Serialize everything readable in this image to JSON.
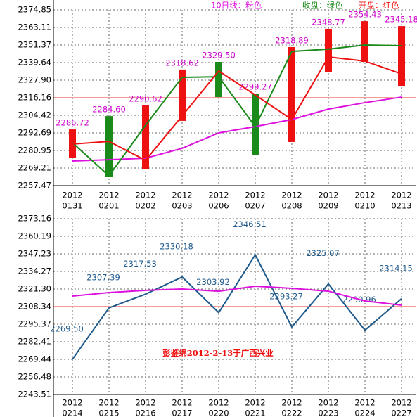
{
  "chart_data": [
    {
      "type": "candlestick",
      "legend": true,
      "categories": [
        {
          "year": "2012",
          "date": "0131"
        },
        {
          "year": "2012",
          "date": "0201"
        },
        {
          "year": "2012",
          "date": "0202"
        },
        {
          "year": "2012",
          "date": "0203"
        },
        {
          "year": "2012",
          "date": "0206"
        },
        {
          "year": "2012",
          "date": "0207"
        },
        {
          "year": "2012",
          "date": "0208"
        },
        {
          "year": "2012",
          "date": "0209"
        },
        {
          "year": "2012",
          "date": "0210"
        },
        {
          "year": "2012",
          "date": "0213"
        }
      ],
      "bars": {
        "low": [
          2276.2,
          2263.1,
          2268.3,
          2300.7,
          2316.6,
          2278.1,
          2286.6,
          2333.5,
          2340.1,
          2324.1
        ],
        "high": [
          2295.0,
          2303.9,
          2311.0,
          2335.0,
          2340.1,
          2319.0,
          2350.0,
          2362.2,
          2367.3,
          2364.0
        ],
        "colors": [
          "#ee1111",
          "#1a8a1a",
          "#ee1111",
          "#ee1111",
          "#1a8a1a",
          "#1a8a1a",
          "#ee1111",
          "#ee1111",
          "#ee1111",
          "#ee1111"
        ]
      },
      "series": [
        {
          "name": "10日线：粉色",
          "color": "#dd11dd",
          "values": [
            2273.9,
            2274.8,
            2275.8,
            2282.4,
            2292.7,
            2296.9,
            2301.6,
            2308.6,
            2312.9,
            2316.6
          ]
        },
        {
          "name": "收盘：绿色",
          "color": "#1a8a1a",
          "values": [
            2286.1,
            2264.0,
            2297.8,
            2329.8,
            2330.2,
            2296.9,
            2347.1,
            2348.6,
            2351.4,
            2350.9
          ]
        },
        {
          "name": "开盘：红色",
          "color": "#ee1111",
          "values": [
            2285.2,
            2287.0,
            2274.4,
            2304.0,
            2334.0,
            2318.0,
            2301.6,
            2343.4,
            2340.6,
            2332.1
          ]
        }
      ],
      "point_labels": [
        "2286.72",
        "2284.60",
        "2290.62",
        "2318.62",
        "2329.50",
        "2299.27",
        "2318.89",
        "2348.77",
        "2354.43",
        "2345.18"
      ],
      "point_label_color": "#cc00cc",
      "reference_line": 2316.16,
      "reference_color": "#ee3333",
      "ylim": [
        2257.47,
        2374.85
      ],
      "yticks": [
        2257.47,
        2269.21,
        2280.95,
        2292.69,
        2304.42,
        2316.16,
        {
          "value": 2327.9,
          "label": "2327.90"
        },
        2339.64,
        2351.37,
        2363.11,
        2374.85
      ],
      "grid": true
    },
    {
      "type": "line",
      "legend": false,
      "categories": [
        {
          "year": "2012",
          "date": "0214"
        },
        {
          "year": "2012",
          "date": "0215"
        },
        {
          "year": "2012",
          "date": "0216"
        },
        {
          "year": "2012",
          "date": "0217"
        },
        {
          "year": "2012",
          "date": "0220"
        },
        {
          "year": "2012",
          "date": "0221"
        },
        {
          "year": "2012",
          "date": "0222"
        },
        {
          "year": "2012",
          "date": "0223"
        },
        {
          "year": "2012",
          "date": "0224"
        },
        {
          "year": "2012",
          "date": "0227"
        }
      ],
      "series": [
        {
          "color": "#1f5a8c",
          "values": [
            2269.5,
            2307.39,
            2317.53,
            2330.18,
            2303.92,
            2346.51,
            2293.27,
            2325.07,
            2290.96,
            2314.15
          ],
          "value_labels": [
            "2269.50",
            "2307.39",
            "2317.53",
            "2330.18",
            "2303.92",
            "2346.51",
            "2293.27",
            "2325.07",
            "2290.96",
            "2314.15"
          ]
        },
        {
          "color": "#dd11dd",
          "values": [
            2316.1,
            2318.7,
            2320.3,
            2321.3,
            2319.7,
            2323.4,
            2321.8,
            2319.7,
            2312.5,
            2309.4
          ]
        }
      ],
      "reference_line": 2308.34,
      "reference_color": "#ee3333",
      "annotation": "彭鉴绵2012-2-13于广西兴业",
      "annotation_color": "#ee1111",
      "ylim": [
        2243.51,
        2373.16
      ],
      "yticks": [
        2243.51,
        2256.48,
        2269.44,
        2282.41,
        2295.37,
        2308.34,
        {
          "value": 2321.3,
          "label": "2321.30"
        },
        2334.27,
        2347.23,
        2360.19,
        2373.16
      ],
      "grid": true
    }
  ]
}
